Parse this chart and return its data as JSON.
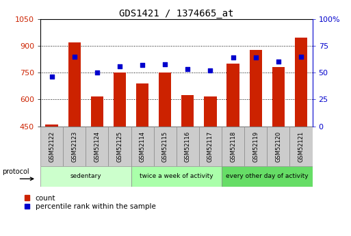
{
  "title": "GDS1421 / 1374665_at",
  "samples": [
    "GSM52122",
    "GSM52123",
    "GSM52124",
    "GSM52125",
    "GSM52114",
    "GSM52115",
    "GSM52116",
    "GSM52117",
    "GSM52118",
    "GSM52119",
    "GSM52120",
    "GSM52121"
  ],
  "counts": [
    460,
    920,
    615,
    750,
    690,
    750,
    625,
    615,
    800,
    875,
    780,
    945
  ],
  "percentiles": [
    46,
    65,
    50,
    56,
    57,
    58,
    53,
    52,
    64,
    64,
    60,
    65
  ],
  "ylim_left": [
    450,
    1050
  ],
  "ylim_right": [
    0,
    100
  ],
  "yticks_left": [
    450,
    600,
    750,
    900,
    1050
  ],
  "yticks_right": [
    0,
    25,
    50,
    75,
    100
  ],
  "ytick_labels_right": [
    "0",
    "25",
    "50",
    "75",
    "100%"
  ],
  "bar_color": "#cc2200",
  "dot_color": "#0000cc",
  "bg_color": "#ffffff",
  "grid_color": "#000000",
  "groups": [
    {
      "label": "sedentary",
      "start": 0,
      "end": 4,
      "color": "#ccffcc"
    },
    {
      "label": "twice a week of activity",
      "start": 4,
      "end": 8,
      "color": "#aaffaa"
    },
    {
      "label": "every other day of activity",
      "start": 8,
      "end": 12,
      "color": "#66dd66"
    }
  ],
  "legend_count_label": "count",
  "legend_pct_label": "percentile rank within the sample",
  "tick_label_color_left": "#cc2200",
  "tick_label_color_right": "#0000cc",
  "sample_box_color": "#cccccc",
  "sample_box_edge": "#888888"
}
